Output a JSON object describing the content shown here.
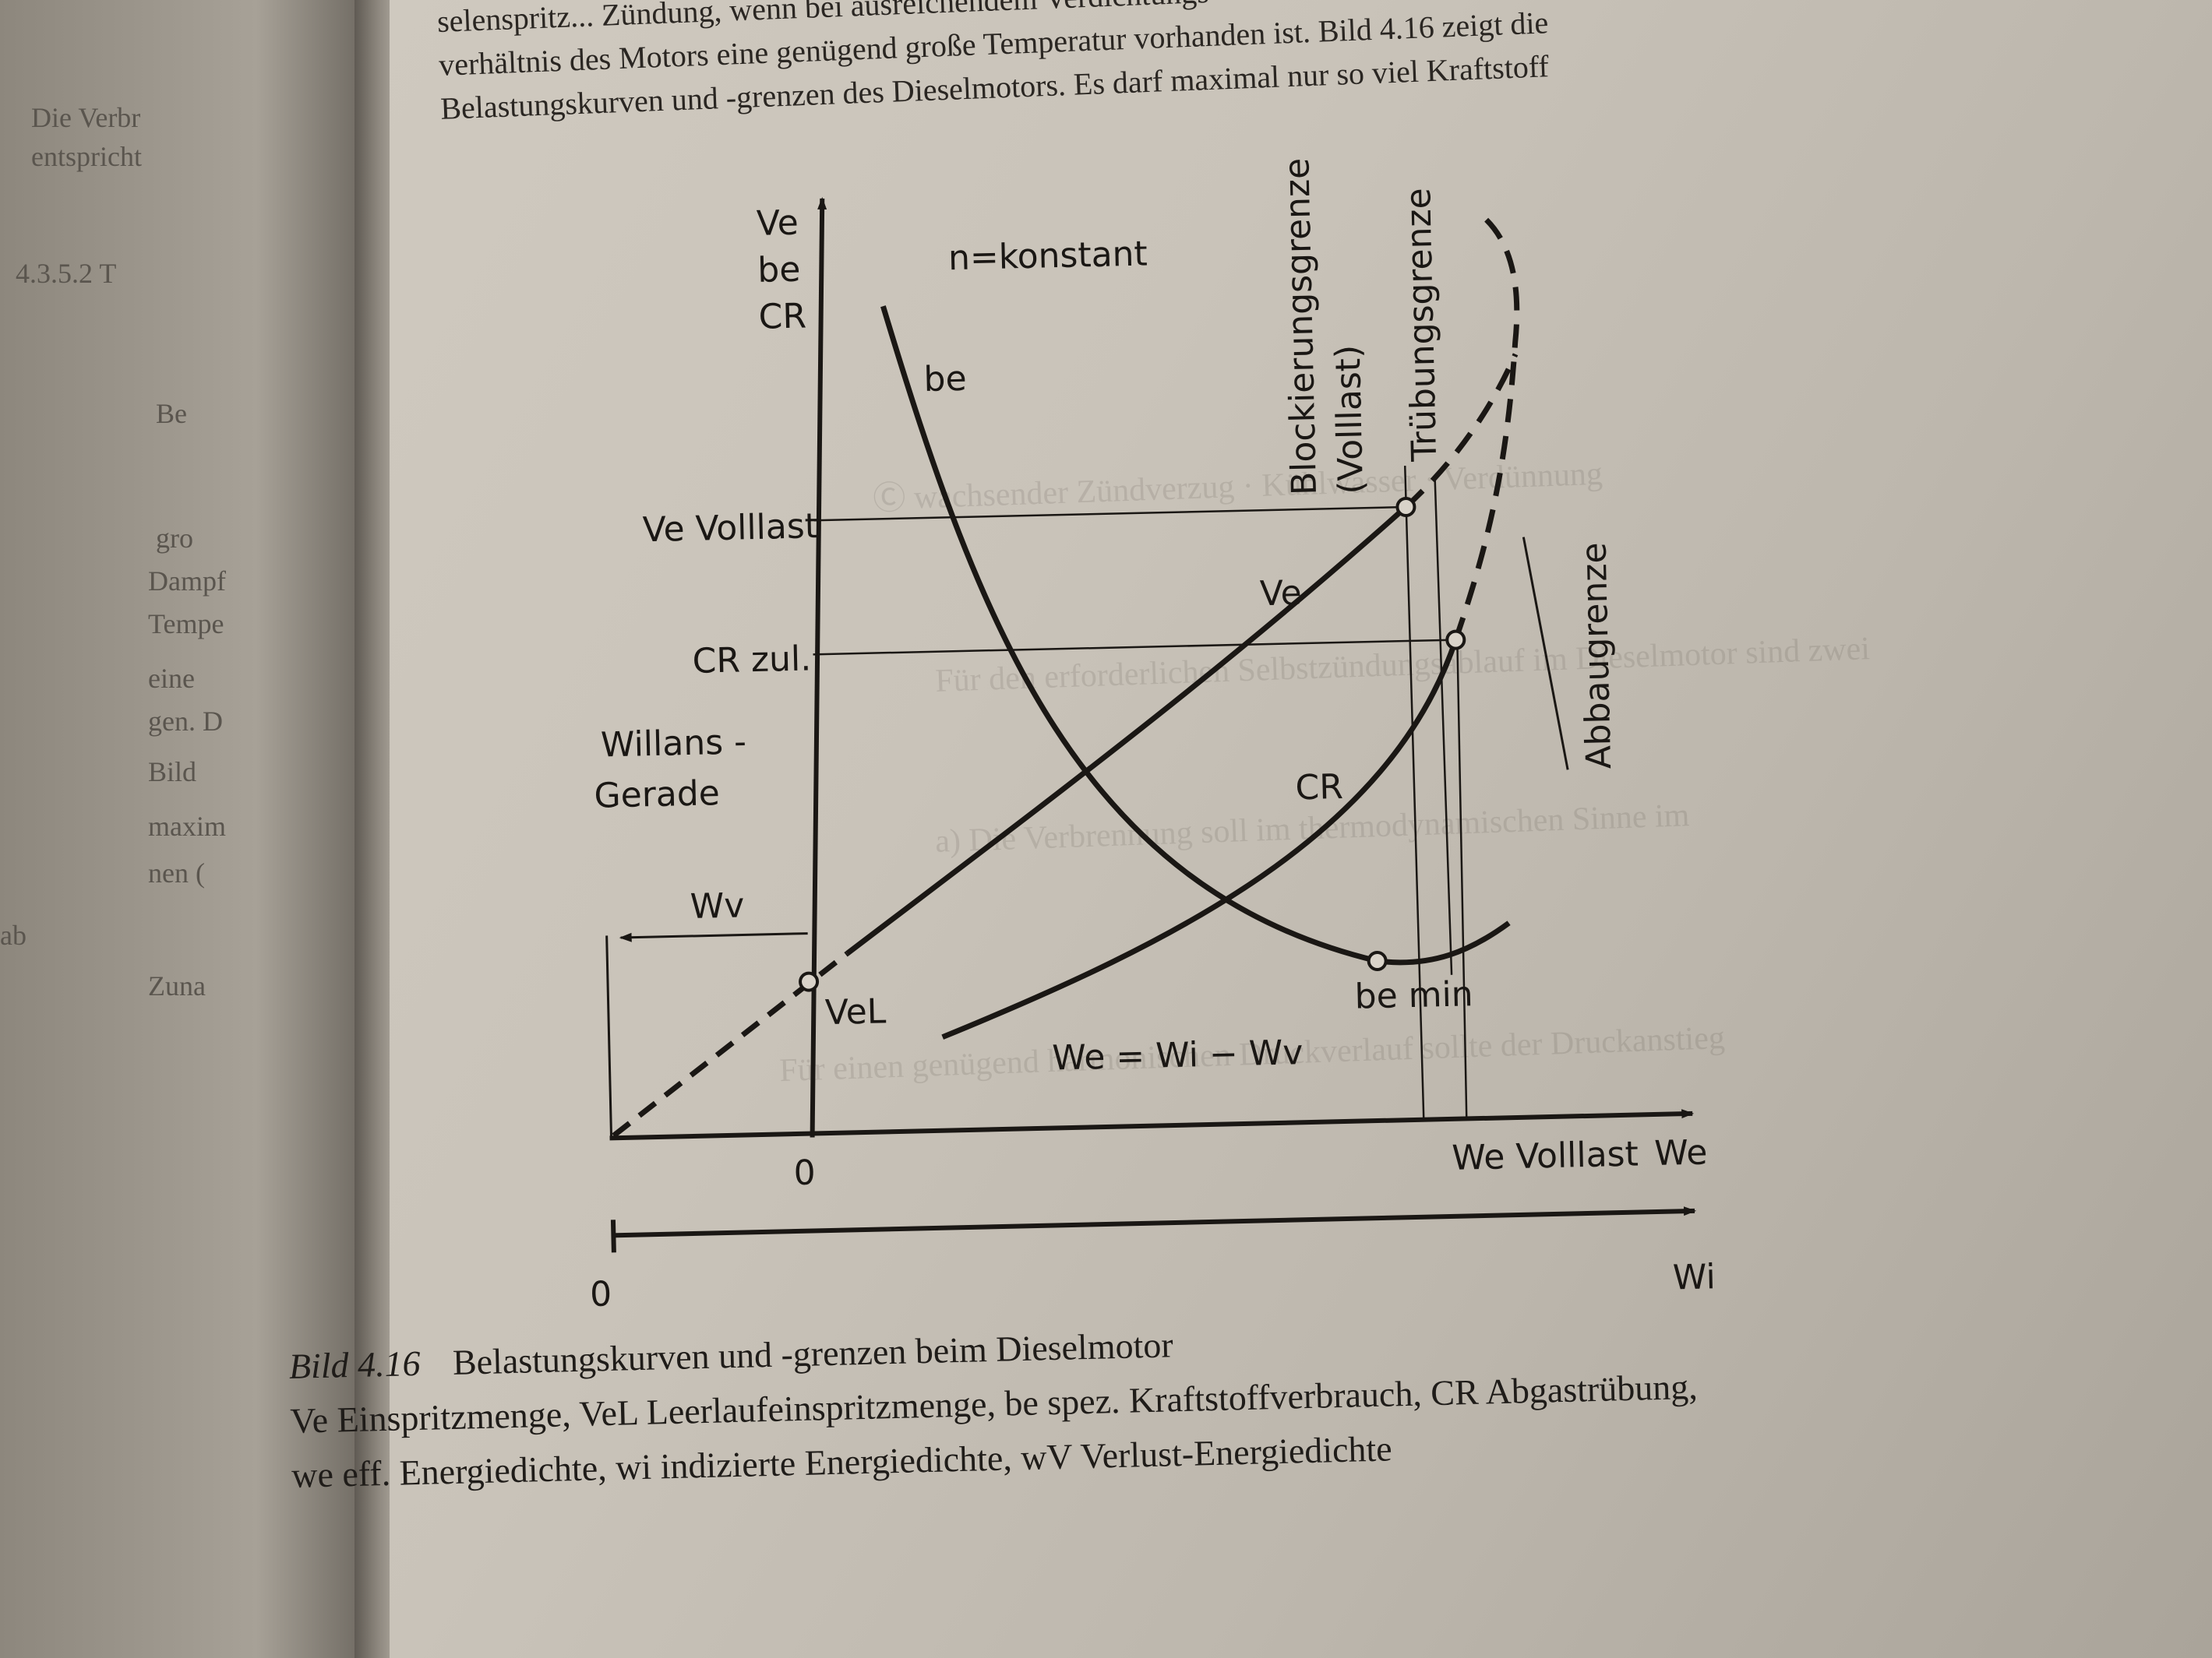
{
  "header_lines": [
    "selenspritz... Zündung, wenn bei ausreichendem Verdichtungs-",
    "verhältnis des Motors eine genügend große Temperatur vorhanden ist. Bild 4.16 zeigt die",
    "Belastungskurven und -grenzen des Dieselmotors. Es darf maximal nur so viel Kraftstoff"
  ],
  "left_page_fragments": [
    "Die Verbr",
    "entspricht",
    "4.3.5.2  T",
    "Be",
    "gro",
    "Dampf",
    "Tempe",
    "eine",
    "gen. D",
    "Bild",
    "maxim",
    "nen (",
    "Zuna",
    "ab"
  ],
  "figure": {
    "y_axis_labels": [
      "Ve",
      "be",
      "CR"
    ],
    "annotation_top": "n=konstant",
    "curve_labels": {
      "be": "be",
      "Ve": "Ve",
      "CR": "CR",
      "be_min": "be min",
      "VeL": "VeL"
    },
    "y_markers": {
      "ve_volllast": "Ve Volllast",
      "cr_zul": "CR zul."
    },
    "willans": [
      "Willans -",
      "Gerade"
    ],
    "wv_label": "Wv",
    "limits": {
      "blockierung": "Blockierungsgrenze",
      "blockierung_sub": "(Volllast)",
      "truebung": "Trübungsgrenze",
      "abbau": "Abbaugrenze"
    },
    "equation": "We = Wi − Wv",
    "x_axis_we": {
      "zero": "0",
      "volllast": "We Volllast",
      "label": "We"
    },
    "x_axis_wi": {
      "zero": "0",
      "label": "Wi"
    }
  },
  "caption": {
    "number": "Bild 4.16",
    "title": "Belastungskurven und -grenzen beim Dieselmotor",
    "line2": "Ve Einspritzmenge, VeL Leerlaufeinspritzmenge, be spez. Kraftstoffverbrauch, CR Abgastrübung,",
    "line3": "we eff. Energiedichte, wi indizierte Energiedichte, wV Verlust-Energiedichte"
  }
}
